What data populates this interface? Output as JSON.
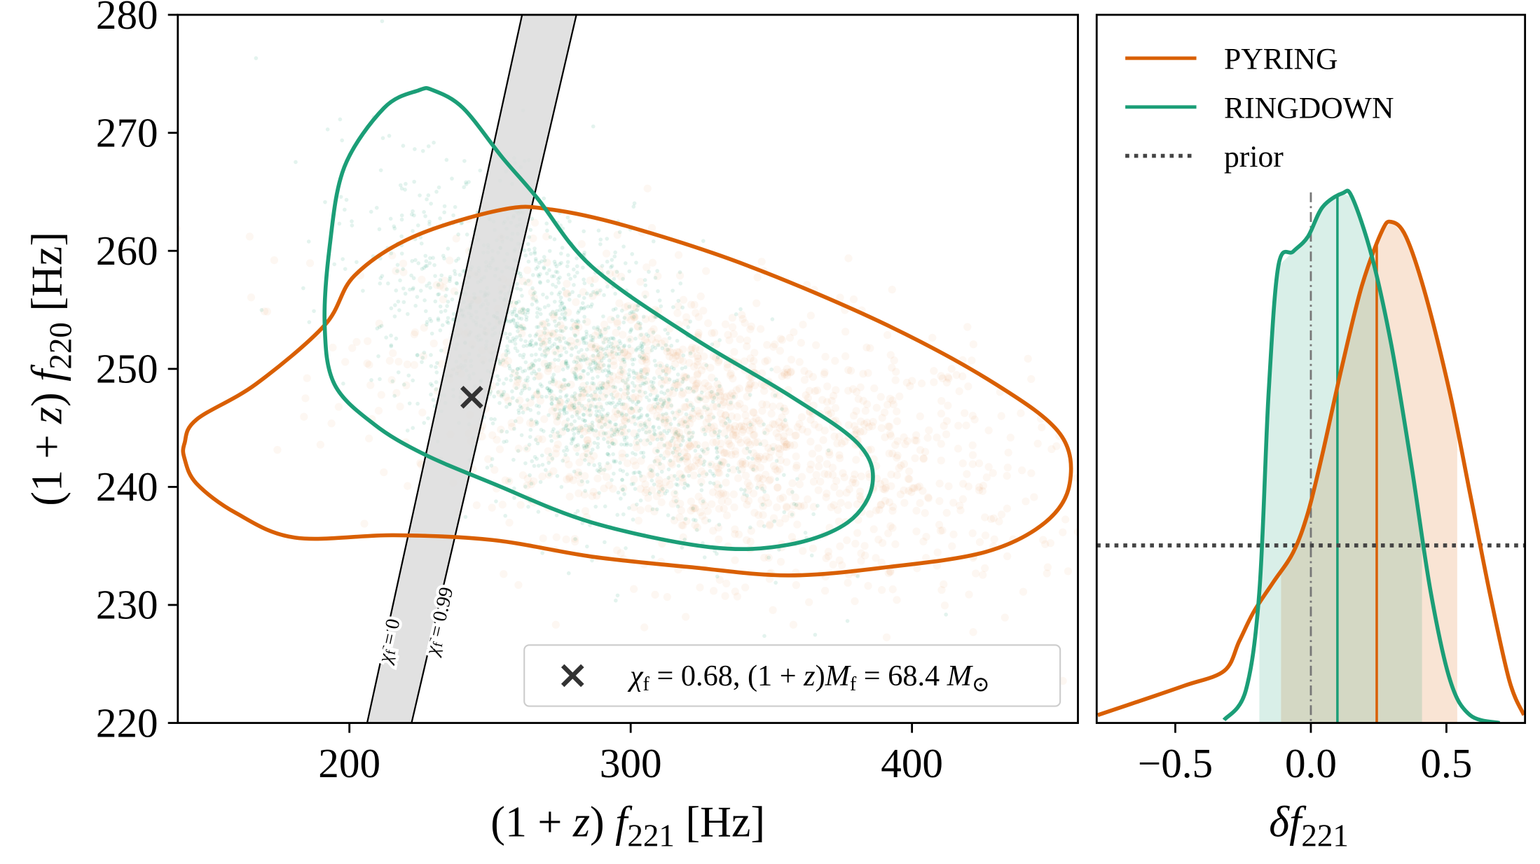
{
  "chart_data": [
    {
      "type": "scatter",
      "panel": "left",
      "xlabel": {
        "pre": "(1 + ",
        "z": "z",
        "mid": ") ",
        "sym": "f",
        "sub": "221",
        "post": " [Hz]"
      },
      "ylabel": {
        "pre": "(1 + ",
        "z": "z",
        "mid": ") ",
        "sym": "f",
        "sub": "220",
        "post": " [Hz]"
      },
      "xlim": [
        139,
        459
      ],
      "ylim": [
        220,
        280
      ],
      "xticks": [
        "200",
        "300",
        "400"
      ],
      "yticks": [
        "220",
        "230",
        "240",
        "250",
        "260",
        "270",
        "280"
      ],
      "grid": false,
      "series": [
        {
          "color": "#d95f02",
          "contour": [
            [
              141.4,
              243.7
            ],
            [
              145.6,
              245.7
            ],
            [
              166.7,
              248.7
            ],
            [
              191.2,
              253.7
            ],
            [
              201.8,
              257.9
            ],
            [
              222.8,
              261.2
            ],
            [
              254.4,
              263.5
            ],
            [
              271.9,
              263.5
            ],
            [
              300,
              262.0
            ],
            [
              342.1,
              258.7
            ],
            [
              391.2,
              253.7
            ],
            [
              429.8,
              248.7
            ],
            [
              452.6,
              244.5
            ],
            [
              456.1,
              240.3
            ],
            [
              447.4,
              237.0
            ],
            [
              426.3,
              234.5
            ],
            [
              391.2,
              233.2
            ],
            [
              356.1,
              232.5
            ],
            [
              321.1,
              233.2
            ],
            [
              286,
              234.1
            ],
            [
              250.9,
              235.5
            ],
            [
              215.8,
              235.9
            ],
            [
              180.7,
              235.7
            ],
            [
              159.6,
              237.8
            ],
            [
              145.6,
              240.3
            ],
            [
              141.4,
              242.4
            ]
          ],
          "density_center": [
            330,
            245
          ]
        },
        {
          "color": "#1b9e77",
          "contour": [
            [
              229.8,
              273.6
            ],
            [
              240.4,
              272.1
            ],
            [
              254.4,
              267.9
            ],
            [
              266.7,
              264.5
            ],
            [
              286,
              258.7
            ],
            [
              321.1,
              252.8
            ],
            [
              356.1,
              247.8
            ],
            [
              380.7,
              243.7
            ],
            [
              386,
              240.3
            ],
            [
              377.2,
              237.0
            ],
            [
              356.1,
              235.1
            ],
            [
              328.1,
              234.9
            ],
            [
              286,
              237.0
            ],
            [
              250.9,
              240.3
            ],
            [
              226.3,
              242.8
            ],
            [
              208.8,
              245.3
            ],
            [
              194.7,
              248.7
            ],
            [
              191.2,
              253.7
            ],
            [
              193,
              260.4
            ],
            [
              198.2,
              267.1
            ],
            [
              212.3,
              272.1
            ],
            [
              224.6,
              273.6
            ]
          ],
          "density_center": [
            275,
            251
          ]
        }
      ],
      "bands": [
        {
          "label_sym": "χ",
          "label_sub": "f",
          "label_val": " = 0",
          "line": [
            [
              206.3,
              220
            ],
            [
              261.4,
              280
            ]
          ]
        },
        {
          "label_sym": "χ",
          "label_sub": "f",
          "label_val": " = 0.99",
          "line": [
            [
              222.1,
              220
            ],
            [
              280.7,
              280
            ]
          ]
        }
      ],
      "band_fill": "#dcdcdc",
      "marker": {
        "x": 243.5,
        "y": 247.6,
        "symbol": "x",
        "color": "#333333"
      },
      "legend": {
        "placement": "lower-right",
        "parts": [
          "χ",
          "f",
          " = 0.68, (1 + ",
          "z",
          ")",
          "M",
          "f",
          " = 68.4 ",
          "M",
          "⊙"
        ]
      }
    },
    {
      "type": "line",
      "panel": "right",
      "xlabel": {
        "sym": "δf",
        "sub": "221"
      },
      "xlim": [
        -0.79,
        0.79
      ],
      "ylim": [
        0,
        7.18
      ],
      "xticks": [
        {
          "v": -0.5,
          "label": "−0.5"
        },
        {
          "v": 0,
          "label": "0.0"
        },
        {
          "v": 0.5,
          "label": "0.5"
        }
      ],
      "grid": false,
      "legend_placement": "top-left",
      "series": [
        {
          "name": "PYRING",
          "color": "#d95f02",
          "x": [
            -0.786,
            -0.645,
            -0.464,
            -0.319,
            -0.264,
            -0.21,
            -0.138,
            -0.065,
            -0.011,
            0.043,
            0.116,
            0.188,
            0.261,
            0.297,
            0.351,
            0.424,
            0.514,
            0.587,
            0.659,
            0.732,
            0.786
          ],
          "y": [
            0.08,
            0.21,
            0.38,
            0.53,
            0.83,
            1.13,
            1.43,
            1.73,
            2.13,
            2.73,
            3.63,
            4.43,
            4.98,
            5.08,
            4.93,
            4.33,
            3.33,
            2.33,
            1.33,
            0.43,
            0.08
          ],
          "median": 0.243,
          "interval": [
            -0.11,
            0.54
          ]
        },
        {
          "name": "RINGDOWN",
          "color": "#1b9e77",
          "x": [
            -0.32,
            -0.24,
            -0.19,
            -0.156,
            -0.12,
            -0.065,
            -0.011,
            0.043,
            0.116,
            0.152,
            0.225,
            0.297,
            0.37,
            0.442,
            0.514,
            0.587,
            0.696
          ],
          "y": [
            0.03,
            0.33,
            1.33,
            3.33,
            4.63,
            4.78,
            4.93,
            5.23,
            5.37,
            5.33,
            4.73,
            3.83,
            2.63,
            1.33,
            0.43,
            0.08,
            0
          ],
          "median": 0.098,
          "interval": [
            -0.19,
            0.41
          ]
        },
        {
          "name": "prior",
          "color": "#444444",
          "style": "dotted",
          "y_const": 1.8
        }
      ],
      "reference_line": {
        "x": 0,
        "style": "dash-dot",
        "color": "#777777"
      }
    }
  ]
}
